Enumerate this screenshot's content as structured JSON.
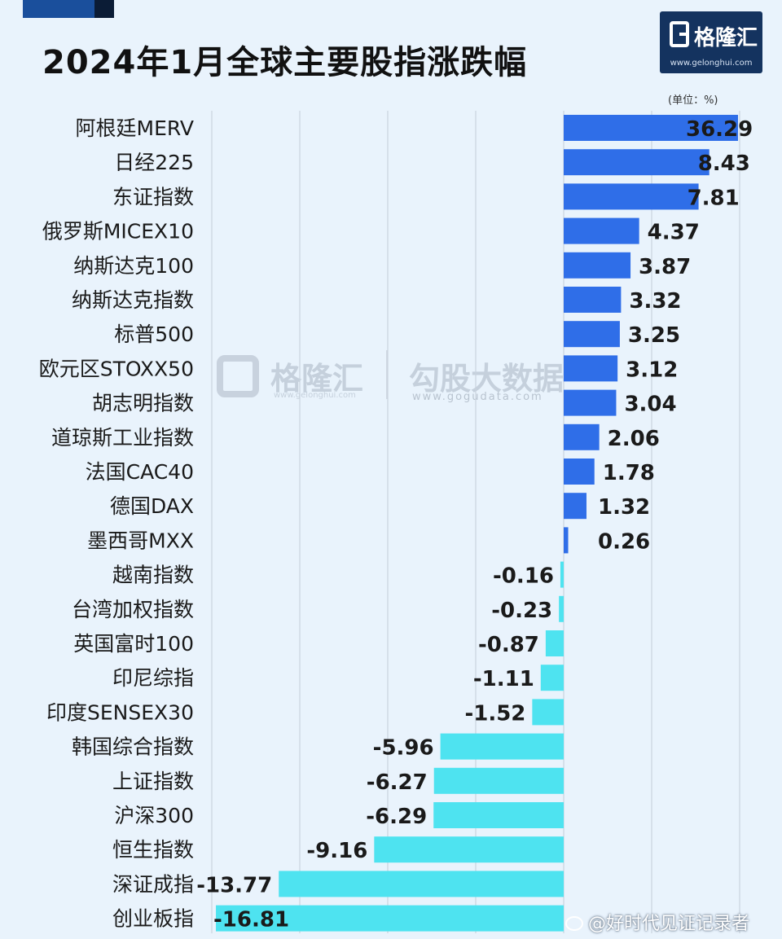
{
  "title": "2024年1月全球主要股指涨跌幅",
  "logo": {
    "name": "格隆汇",
    "url": "www.gelonghui.com",
    "icon": "g-logo-icon"
  },
  "unit_label": "(单位：%)",
  "watermark": {
    "left_name": "格隆汇",
    "left_url": "www.gelonghui.com",
    "right_name": "勾股大数据",
    "right_url": "www.gogudata.com"
  },
  "footer_credit": "@好时代见证记录者",
  "colors": {
    "positive": "#2f6ee8",
    "negative": "#4ee3f0",
    "title": "#111111",
    "background": "#e9f3fc"
  },
  "chart_data": {
    "type": "bar",
    "orientation": "horizontal",
    "unit": "%",
    "categories": [
      "阿根廷MERV",
      "日经225",
      "东证指数",
      "俄罗斯MICEX10",
      "纳斯达克100",
      "纳斯达克指数",
      "标普500",
      "欧元区STOXX50",
      "胡志明指数",
      "道琼斯工业指数",
      "法国CAC40",
      "德国DAX",
      "墨西哥MXX",
      "越南指数",
      "台湾加权指数",
      "英国富时100",
      "印尼综指",
      "印度SENSEX30",
      "韩国综合指数",
      "上证指数",
      "沪深300",
      "恒生指数",
      "深证成指",
      "创业板指"
    ],
    "values": [
      36.29,
      8.43,
      7.81,
      4.37,
      3.87,
      3.32,
      3.25,
      3.12,
      3.04,
      2.06,
      1.78,
      1.32,
      0.26,
      -0.16,
      -0.23,
      -0.87,
      -1.11,
      -1.52,
      -5.96,
      -6.27,
      -6.29,
      -9.16,
      -13.77,
      -16.81
    ],
    "value_labels": [
      "36.29",
      "8.43",
      "7.81",
      "4.37",
      "3.87",
      "3.32",
      "3.25",
      "3.12",
      "3.04",
      "2.06",
      "1.78",
      "1.32",
      "0.26",
      "-0.16",
      "-0.23",
      "-0.87",
      "-1.11",
      "-1.52",
      "-5.96",
      "-6.27",
      "-6.29",
      "-9.16",
      "-13.77",
      "-16.81"
    ],
    "grid": true
  }
}
